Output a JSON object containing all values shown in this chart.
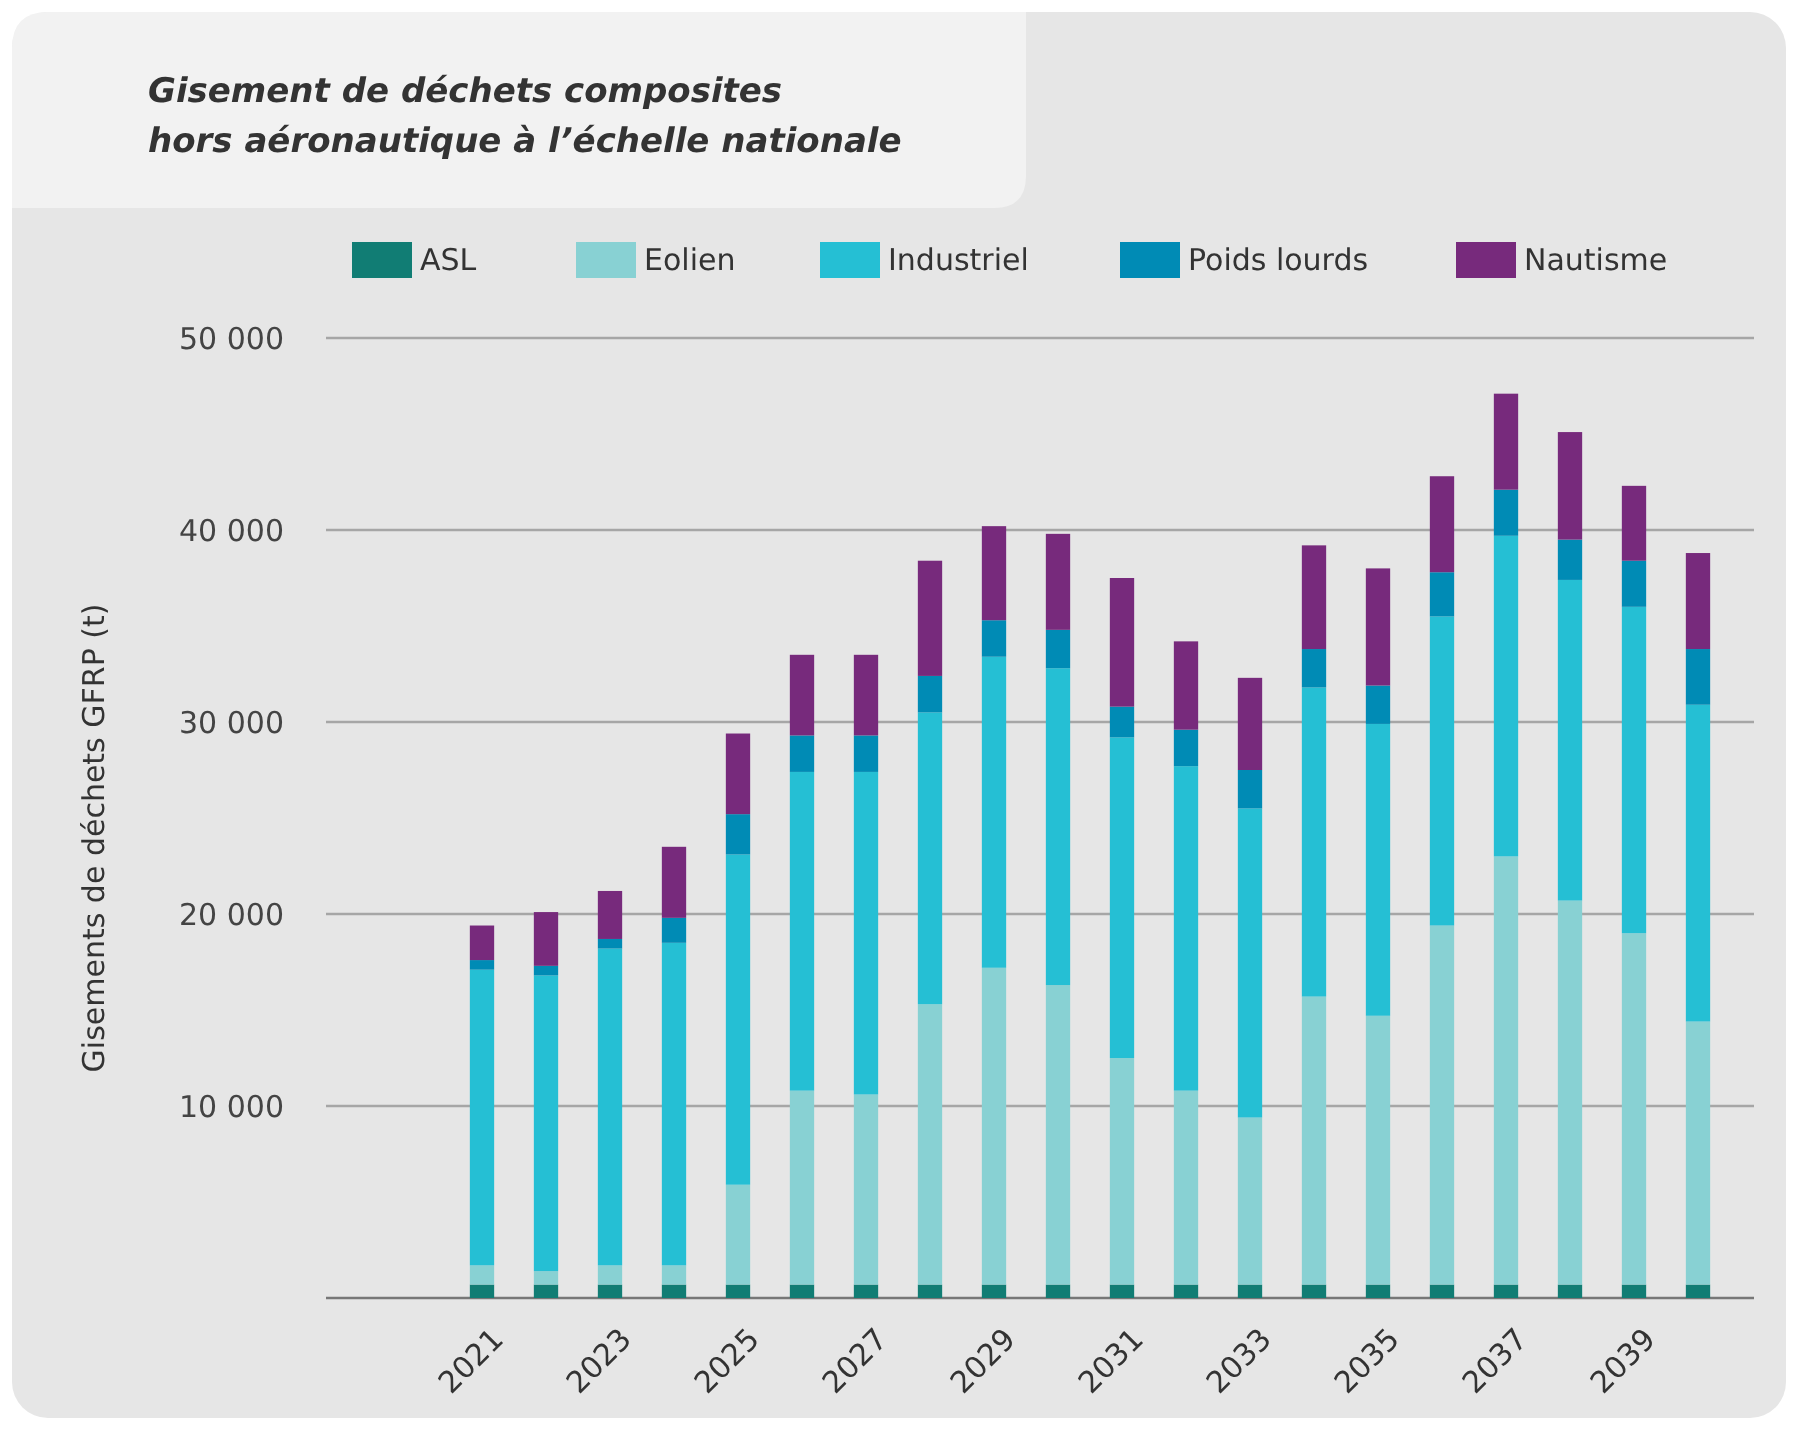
{
  "chart_data": {
    "type": "bar",
    "stacked": true,
    "title": "Gisement de déchets composites\nhors aéronautique à l’échelle nationale",
    "ylabel": "Gisements de déchets GFRP (t)",
    "categories": [
      "2021",
      null,
      "2023",
      null,
      "2025",
      null,
      "2027",
      null,
      "2029",
      null,
      "2031",
      null,
      "2033",
      null,
      "2035",
      null,
      "2037",
      null,
      "2039",
      null
    ],
    "series": [
      {
        "name": "ASL",
        "color": "#117d74",
        "values": [
          700,
          700,
          700,
          700,
          700,
          700,
          700,
          700,
          700,
          700,
          700,
          700,
          700,
          700,
          700,
          700,
          700,
          700,
          700,
          700
        ]
      },
      {
        "name": "Eolien",
        "color": "#88d1d3",
        "values": [
          1000,
          700,
          1000,
          1000,
          5200,
          10100,
          9900,
          14600,
          16500,
          15600,
          11800,
          10100,
          8700,
          15000,
          14000,
          18700,
          22300,
          20000,
          18300,
          13700
        ]
      },
      {
        "name": "Industriel",
        "color": "#25bfd4",
        "values": [
          15400,
          15400,
          16500,
          16800,
          17200,
          16600,
          16800,
          15200,
          16200,
          16500,
          16700,
          16900,
          16100,
          16100,
          15200,
          16100,
          16700,
          16700,
          17000,
          16500
        ]
      },
      {
        "name": "Poids lourds",
        "color": "#008bb5",
        "values": [
          500,
          500,
          500,
          1300,
          2100,
          1900,
          1900,
          1900,
          1900,
          2000,
          1600,
          1900,
          2000,
          2000,
          2000,
          2300,
          2400,
          2100,
          2400,
          2900
        ]
      },
      {
        "name": "Nautisme",
        "color": "#772a7c",
        "values": [
          1800,
          2800,
          2500,
          3700,
          4200,
          4200,
          4200,
          6000,
          4900,
          5000,
          6700,
          4600,
          4800,
          5400,
          6100,
          5000,
          5000,
          5600,
          3900,
          5000
        ]
      }
    ],
    "ylim": [
      0,
      50000
    ],
    "yticks": [
      {
        "value": 0,
        "label": null
      },
      {
        "value": 10000,
        "label": "10 000"
      },
      {
        "value": 20000,
        "label": "20 000"
      },
      {
        "value": 30000,
        "label": "30 000"
      },
      {
        "value": 40000,
        "label": "40 000"
      },
      {
        "value": 50000,
        "label": "50 000"
      }
    ],
    "grid": "y",
    "legend": "top"
  }
}
